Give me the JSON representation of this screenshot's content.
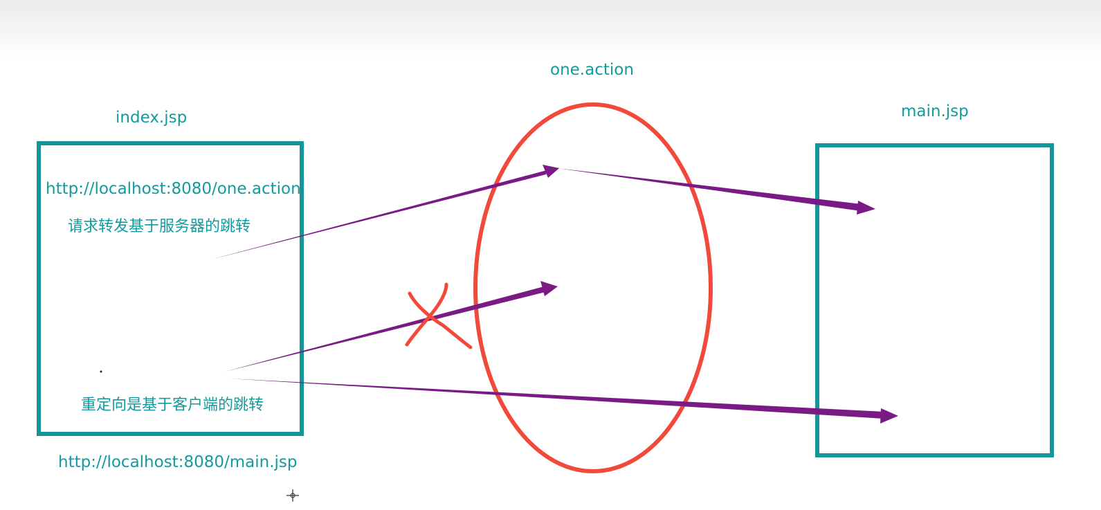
{
  "diagram": {
    "index_box": {
      "title": "index.jsp",
      "url_forward": "http://localhost:8080/one.action",
      "forward_caption": "请求转发基于服务器的跳转",
      "redirect_caption": "重定向是基于客户端的跳转"
    },
    "redirect_url": "http://localhost:8080/main.jsp",
    "action_node": {
      "title": "one.action"
    },
    "main_box": {
      "title": "main.jsp"
    },
    "colors": {
      "box_border": "#15949a",
      "text": "#139a9e",
      "ellipse": "#f24a3a",
      "arrow": "#7a1a85",
      "cross": "#f24a3a"
    }
  }
}
